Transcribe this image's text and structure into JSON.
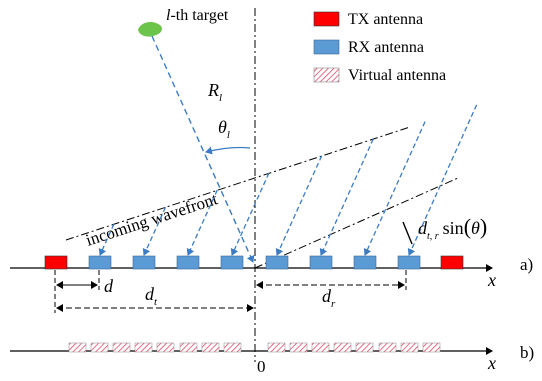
{
  "target": {
    "label_italic": "l",
    "label_rest": "-th target",
    "color": "#6cc44a"
  },
  "legend": {
    "tx": {
      "label": "TX antenna",
      "color": "#ff0000"
    },
    "rx": {
      "label": "RX antenna",
      "color": "#5b9bd5"
    },
    "virtual": {
      "label": "Virtual antenna",
      "color": "#e04a6a"
    }
  },
  "labels": {
    "range_main": "R",
    "range_sub": "l",
    "angle_main": "θ",
    "angle_sub": "l",
    "wavefront": "incoming wavefront",
    "d": "d",
    "dt_main": "d",
    "dt_sub": "t",
    "dr_main": "d",
    "dr_sub": "r",
    "dtr_main": "d",
    "dtr_sub": "t, r",
    "dtr_func": "sin",
    "dtr_arg": "θ",
    "axis_x_a": "x",
    "axis_x_b": "x",
    "origin": "0",
    "panel_a": "a)",
    "panel_b": "b)"
  },
  "colors": {
    "arrow": "#3b7cc4",
    "line": "#000000"
  }
}
